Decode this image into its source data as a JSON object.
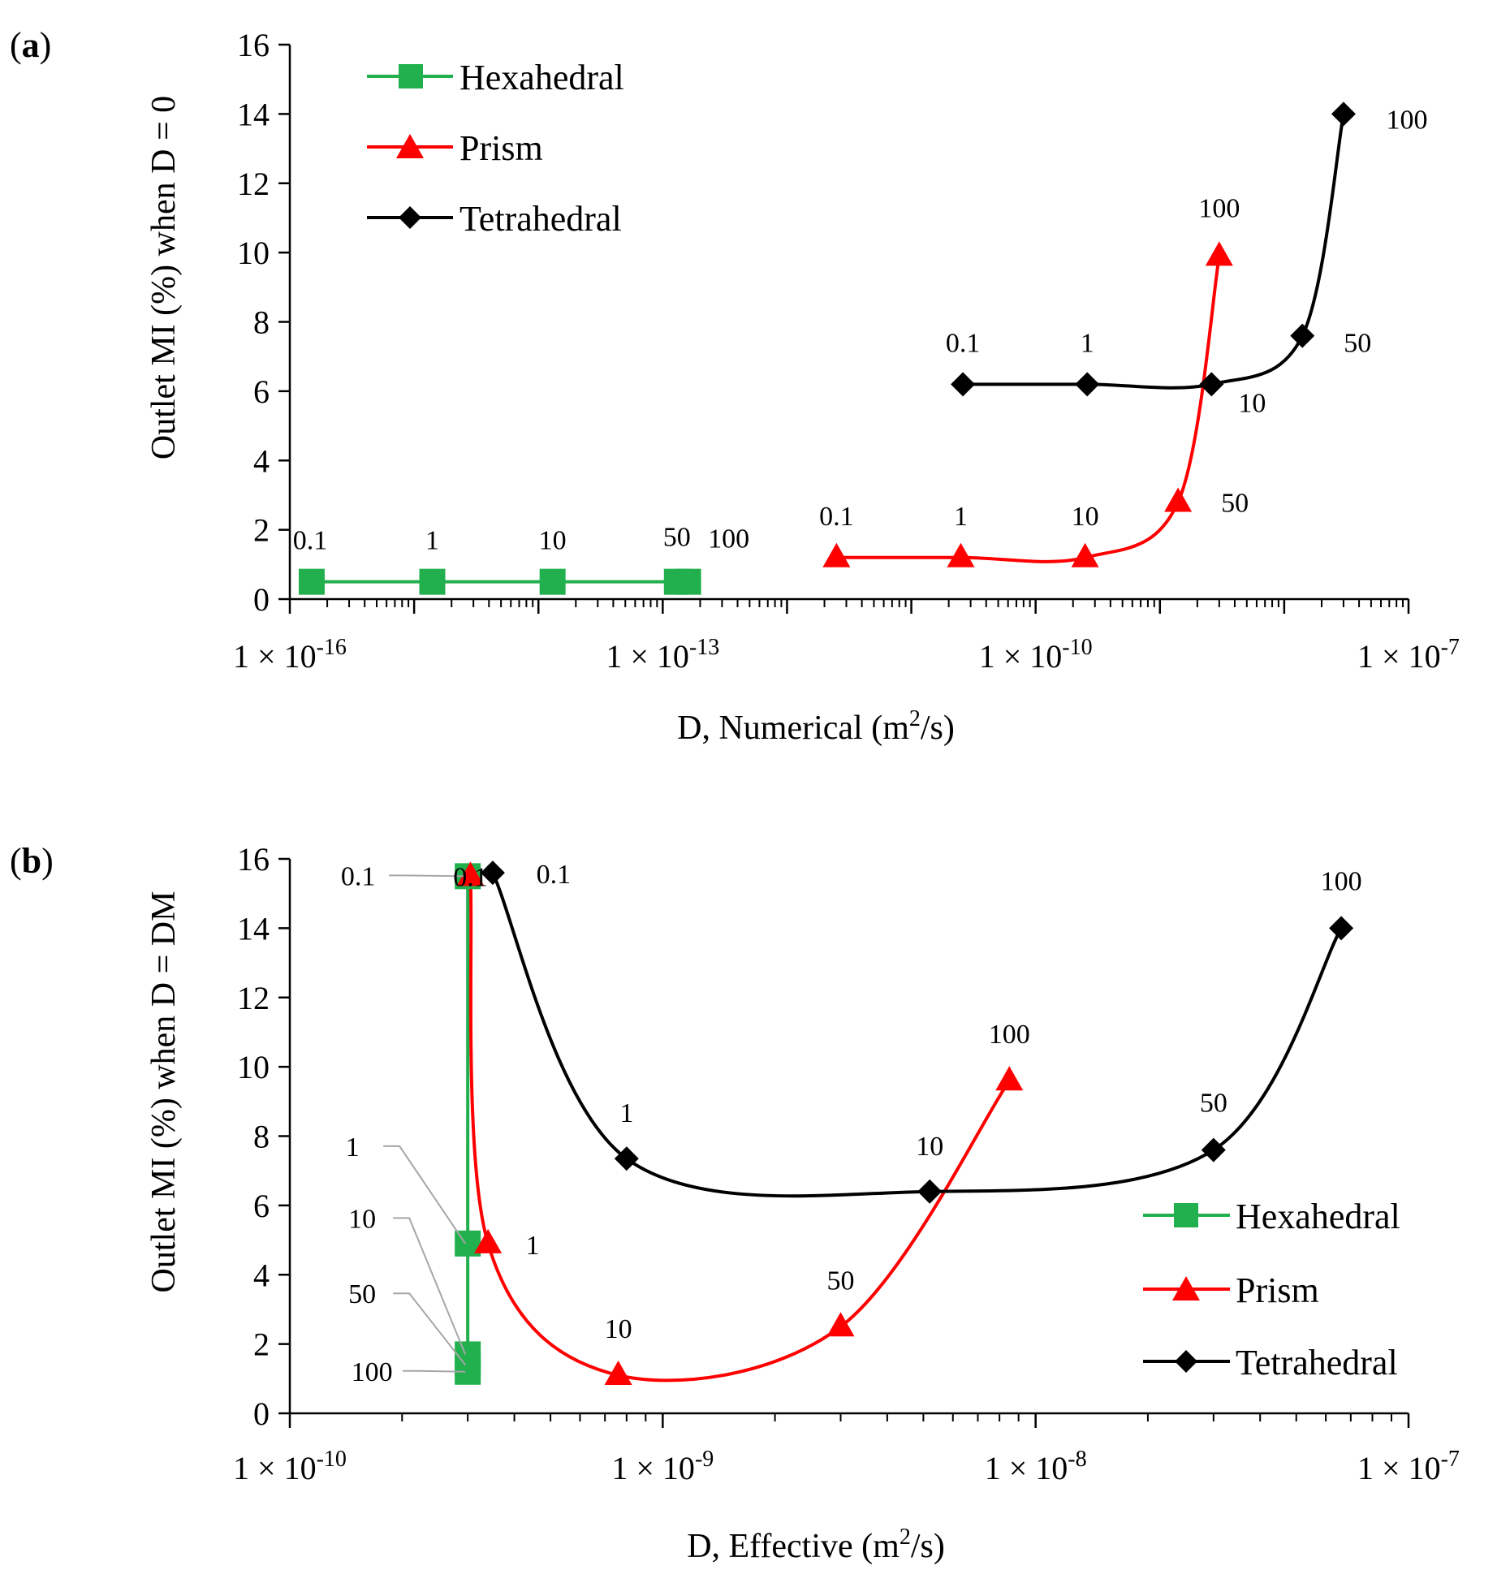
{
  "chart_data": [
    {
      "panel": "(a)",
      "panel_label": {
        "open": "(",
        "letter": "a",
        "close": ")"
      },
      "type": "line",
      "x_scale": "log",
      "xlim_exp": [
        -16,
        -7
      ],
      "x_ticks": [
        {
          "exp": -16,
          "mantissa": "1 × 10",
          "sup": "-16"
        },
        {
          "exp": -13,
          "mantissa": "1 × 10",
          "sup": "-13"
        },
        {
          "exp": -10,
          "mantissa": "1 × 10",
          "sup": "-10"
        },
        {
          "exp": -7,
          "mantissa": "1 × 10",
          "sup": "-7"
        }
      ],
      "ylim": [
        0,
        16
      ],
      "y_ticks": [
        0,
        2,
        4,
        6,
        8,
        10,
        12,
        14,
        16
      ],
      "xlabel": {
        "main": "D, Numerical (m",
        "sup": "2",
        "tail": "/s)"
      },
      "ylabel": "Outlet MI (%) when D = 0",
      "legend_position": "top-left",
      "series": [
        {
          "name": "Hexahedral",
          "color": "#22b04e",
          "marker": "square",
          "smooth": false,
          "points": [
            {
              "x": 1.5e-16,
              "y": 0.5,
              "label": "0.1"
            },
            {
              "x": 1.4e-15,
              "y": 0.5,
              "label": "1"
            },
            {
              "x": 1.3e-14,
              "y": 0.5,
              "label": "10"
            },
            {
              "x": 1.3e-13,
              "y": 0.5,
              "label": "50"
            },
            {
              "x": 1.6e-13,
              "y": 0.5,
              "label": "100"
            }
          ]
        },
        {
          "name": "Prism",
          "color": "#ff0000",
          "marker": "triangle",
          "smooth": true,
          "points": [
            {
              "x": 2.5e-12,
              "y": 1.2,
              "label": "0.1"
            },
            {
              "x": 2.5e-11,
              "y": 1.2,
              "label": "1"
            },
            {
              "x": 2.5e-10,
              "y": 1.2,
              "label": "10"
            },
            {
              "x": 1.4e-09,
              "y": 2.8,
              "label": "50"
            },
            {
              "x": 3e-09,
              "y": 9.9,
              "label": "100"
            }
          ]
        },
        {
          "name": "Tetrahedral",
          "color": "#000000",
          "marker": "diamond",
          "smooth": true,
          "points": [
            {
              "x": 2.6e-11,
              "y": 6.2,
              "label": "0.1"
            },
            {
              "x": 2.6e-10,
              "y": 6.2,
              "label": "1"
            },
            {
              "x": 2.6e-09,
              "y": 6.2,
              "label": "10"
            },
            {
              "x": 1.4e-08,
              "y": 7.6,
              "label": "50"
            },
            {
              "x": 3e-08,
              "y": 14.0,
              "label": "100"
            }
          ]
        }
      ]
    },
    {
      "panel": "(b)",
      "panel_label": {
        "open": "(",
        "letter": "b",
        "close": ")"
      },
      "type": "line",
      "x_scale": "log",
      "xlim_exp": [
        -10,
        -7
      ],
      "x_ticks": [
        {
          "exp": -10,
          "mantissa": "1 × 10",
          "sup": "-10"
        },
        {
          "exp": -9,
          "mantissa": "1 × 10",
          "sup": "-9"
        },
        {
          "exp": -8,
          "mantissa": "1 × 10",
          "sup": "-8"
        },
        {
          "exp": -7,
          "mantissa": "1 × 10",
          "sup": "-7"
        }
      ],
      "ylim": [
        0,
        16
      ],
      "y_ticks": [
        0,
        2,
        4,
        6,
        8,
        10,
        12,
        14,
        16
      ],
      "xlabel": {
        "main": "D, Effective (m",
        "sup": "2",
        "tail": "/s)"
      },
      "ylabel": "Outlet MI (%) when D = DM",
      "legend_position": "bottom-right",
      "series": [
        {
          "name": "Hexahedral",
          "color": "#22b04e",
          "marker": "square",
          "smooth": false,
          "points": [
            {
              "x": 3e-10,
              "y": 15.5,
              "label": "0.1"
            },
            {
              "x": 3e-10,
              "y": 4.9,
              "label": "1"
            },
            {
              "x": 3e-10,
              "y": 1.7,
              "label": "10"
            },
            {
              "x": 3e-10,
              "y": 1.4,
              "label": "50"
            },
            {
              "x": 3e-10,
              "y": 1.2,
              "label": "100"
            }
          ]
        },
        {
          "name": "Prism",
          "color": "#ff0000",
          "marker": "triangle",
          "smooth": true,
          "points": [
            {
              "x": 3.05e-10,
              "y": 15.5,
              "label": "0.1"
            },
            {
              "x": 3.4e-10,
              "y": 4.9,
              "label": "1"
            },
            {
              "x": 7.6e-10,
              "y": 1.1,
              "label": "10"
            },
            {
              "x": 3e-09,
              "y": 2.5,
              "label": "50"
            },
            {
              "x": 8.5e-09,
              "y": 9.6,
              "label": "100"
            }
          ]
        },
        {
          "name": "Tetrahedral",
          "color": "#000000",
          "marker": "diamond",
          "smooth": true,
          "points": [
            {
              "x": 3.5e-10,
              "y": 15.6,
              "label": "0.1"
            },
            {
              "x": 8e-10,
              "y": 7.35,
              "label": "1"
            },
            {
              "x": 5.2e-09,
              "y": 6.4,
              "label": "10"
            },
            {
              "x": 3e-08,
              "y": 7.6,
              "label": "50"
            },
            {
              "x": 6.6e-08,
              "y": 14.0,
              "label": "100"
            }
          ]
        }
      ]
    }
  ]
}
